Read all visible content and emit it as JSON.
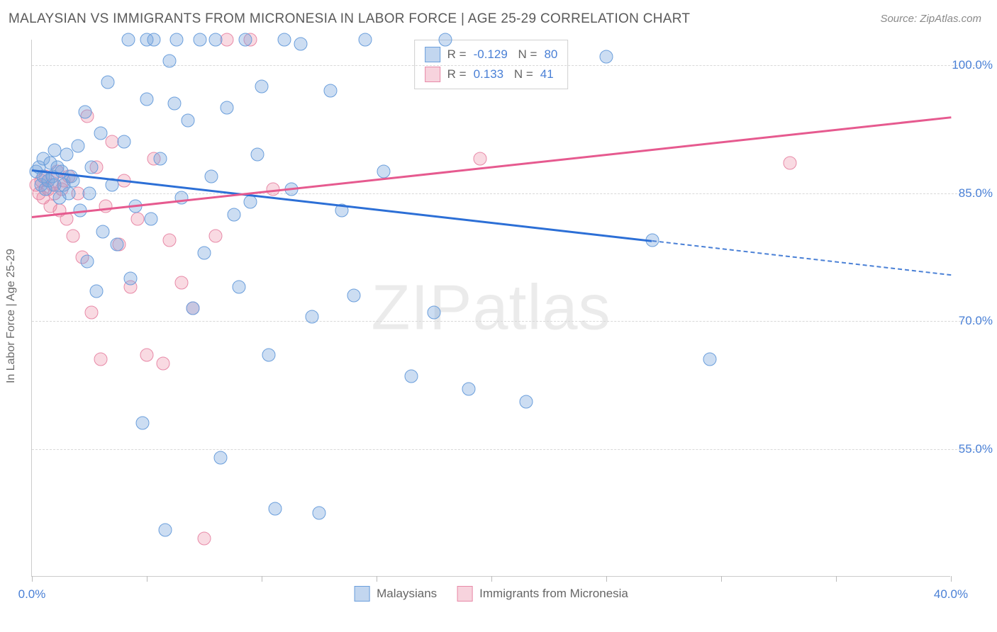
{
  "title": "MALAYSIAN VS IMMIGRANTS FROM MICRONESIA IN LABOR FORCE | AGE 25-29 CORRELATION CHART",
  "source": "Source: ZipAtlas.com",
  "watermark_a": "ZIP",
  "watermark_b": "atlas",
  "chart": {
    "type": "scatter",
    "ylabel": "In Labor Force | Age 25-29",
    "xlim": [
      0,
      40
    ],
    "ylim": [
      40,
      103
    ],
    "xtick_positions": [
      0,
      5,
      10,
      15,
      20,
      25,
      30,
      35,
      40
    ],
    "xtick_labels": {
      "0": "0.0%",
      "40": "40.0%"
    },
    "ytick_positions": [
      55,
      70,
      85,
      100
    ],
    "ytick_labels": [
      "55.0%",
      "70.0%",
      "85.0%",
      "100.0%"
    ],
    "grid_color": "#d8d8d8",
    "background_color": "#ffffff",
    "axis_label_color": "#4a80d6",
    "marker_radius": 9.5,
    "series": {
      "malaysians": {
        "label": "Malaysians",
        "fill_color": "rgba(120,165,220,0.38)",
        "stroke_color": "#6b9fdc",
        "trend_color": "#2c6fd6",
        "R": "-0.129",
        "N": "80",
        "trend": {
          "x1": 0,
          "y1": 87.8,
          "x2": 27,
          "y2": 79.5,
          "x2_dash": 40,
          "y2_dash": 75.5
        },
        "points": [
          [
            0.2,
            87.5
          ],
          [
            0.3,
            88.0
          ],
          [
            0.4,
            86.0
          ],
          [
            0.5,
            87.0
          ],
          [
            0.5,
            89.0
          ],
          [
            0.6,
            85.5
          ],
          [
            0.7,
            86.5
          ],
          [
            0.8,
            88.5
          ],
          [
            0.9,
            87.0
          ],
          [
            1.0,
            86.0
          ],
          [
            1.0,
            90.0
          ],
          [
            1.1,
            88.0
          ],
          [
            1.2,
            84.5
          ],
          [
            1.3,
            87.5
          ],
          [
            1.4,
            86.0
          ],
          [
            1.5,
            89.5
          ],
          [
            1.6,
            85.0
          ],
          [
            1.7,
            87.0
          ],
          [
            1.8,
            86.5
          ],
          [
            2.0,
            90.5
          ],
          [
            2.1,
            83.0
          ],
          [
            2.3,
            94.5
          ],
          [
            2.4,
            77.0
          ],
          [
            2.5,
            85.0
          ],
          [
            2.6,
            88.0
          ],
          [
            2.8,
            73.5
          ],
          [
            3.0,
            92.0
          ],
          [
            3.1,
            80.5
          ],
          [
            3.3,
            98.0
          ],
          [
            3.5,
            86.0
          ],
          [
            3.7,
            79.0
          ],
          [
            4.0,
            91.0
          ],
          [
            4.3,
            75.0
          ],
          [
            4.5,
            83.5
          ],
          [
            4.8,
            58.0
          ],
          [
            5.0,
            96.0
          ],
          [
            5.0,
            103.0
          ],
          [
            5.2,
            82.0
          ],
          [
            5.3,
            103.0
          ],
          [
            5.6,
            89.0
          ],
          [
            6.0,
            100.5
          ],
          [
            6.2,
            95.5
          ],
          [
            6.3,
            103.0
          ],
          [
            6.5,
            84.5
          ],
          [
            6.8,
            93.5
          ],
          [
            7.0,
            71.5
          ],
          [
            7.3,
            103.0
          ],
          [
            7.5,
            78.0
          ],
          [
            7.8,
            87.0
          ],
          [
            8.0,
            103.0
          ],
          [
            8.2,
            54.0
          ],
          [
            8.5,
            95.0
          ],
          [
            8.8,
            82.5
          ],
          [
            9.0,
            74.0
          ],
          [
            9.3,
            103.0
          ],
          [
            9.5,
            84.0
          ],
          [
            9.8,
            89.5
          ],
          [
            10.0,
            97.5
          ],
          [
            10.3,
            66.0
          ],
          [
            10.6,
            48.0
          ],
          [
            11.0,
            103.0
          ],
          [
            11.3,
            85.5
          ],
          [
            11.7,
            102.5
          ],
          [
            12.2,
            70.5
          ],
          [
            12.5,
            47.5
          ],
          [
            13.0,
            97.0
          ],
          [
            13.5,
            83.0
          ],
          [
            14.0,
            73.0
          ],
          [
            14.5,
            103.0
          ],
          [
            15.3,
            87.5
          ],
          [
            16.5,
            63.5
          ],
          [
            17.5,
            71.0
          ],
          [
            18.0,
            103.0
          ],
          [
            19.0,
            62.0
          ],
          [
            21.5,
            60.5
          ],
          [
            25.0,
            101.0
          ],
          [
            27.0,
            79.5
          ],
          [
            29.5,
            65.5
          ],
          [
            5.8,
            45.5
          ],
          [
            4.2,
            103.0
          ]
        ]
      },
      "micronesia": {
        "label": "Immigrants from Micronesia",
        "fill_color": "rgba(235,140,165,0.32)",
        "stroke_color": "#e88aa8",
        "trend_color": "#e65a8f",
        "R": "0.133",
        "N": "41",
        "trend": {
          "x1": 0,
          "y1": 82.3,
          "x2": 40,
          "y2": 94.0
        },
        "points": [
          [
            0.2,
            86.0
          ],
          [
            0.3,
            85.0
          ],
          [
            0.4,
            86.5
          ],
          [
            0.5,
            84.5
          ],
          [
            0.6,
            87.0
          ],
          [
            0.7,
            85.5
          ],
          [
            0.8,
            83.5
          ],
          [
            0.9,
            86.0
          ],
          [
            1.0,
            85.0
          ],
          [
            1.1,
            87.5
          ],
          [
            1.2,
            83.0
          ],
          [
            1.3,
            85.5
          ],
          [
            1.4,
            86.5
          ],
          [
            1.5,
            82.0
          ],
          [
            1.6,
            87.0
          ],
          [
            1.8,
            80.0
          ],
          [
            2.0,
            85.0
          ],
          [
            2.2,
            77.5
          ],
          [
            2.4,
            94.0
          ],
          [
            2.6,
            71.0
          ],
          [
            2.8,
            88.0
          ],
          [
            3.0,
            65.5
          ],
          [
            3.2,
            83.5
          ],
          [
            3.5,
            91.0
          ],
          [
            3.8,
            79.0
          ],
          [
            4.0,
            86.5
          ],
          [
            4.3,
            74.0
          ],
          [
            4.6,
            82.0
          ],
          [
            5.0,
            66.0
          ],
          [
            5.3,
            89.0
          ],
          [
            5.7,
            65.0
          ],
          [
            6.0,
            79.5
          ],
          [
            6.5,
            74.5
          ],
          [
            7.0,
            71.5
          ],
          [
            7.5,
            44.5
          ],
          [
            8.0,
            80.0
          ],
          [
            8.5,
            103.0
          ],
          [
            9.5,
            103.0
          ],
          [
            10.5,
            85.5
          ],
          [
            19.5,
            89.0
          ],
          [
            33.0,
            88.5
          ]
        ]
      }
    }
  }
}
